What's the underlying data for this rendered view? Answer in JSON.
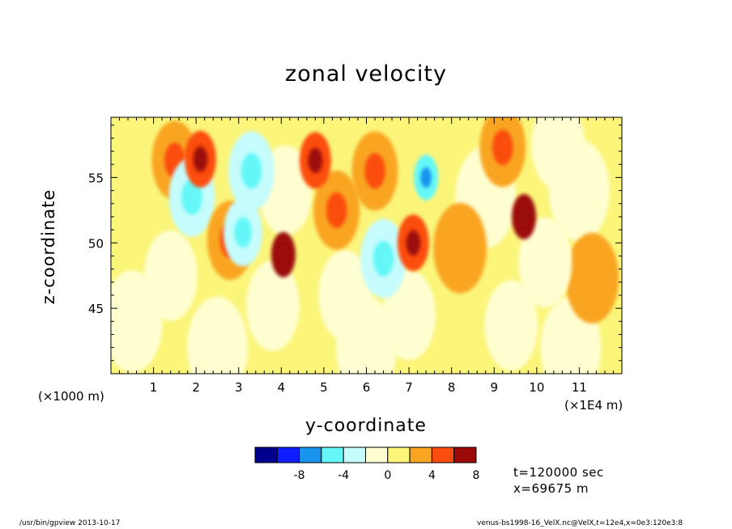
{
  "chart_data": {
    "type": "heatmap",
    "title": "zonal velocity",
    "xlabel": "y-coordinate",
    "ylabel": "z-coordinate",
    "x_unit_note": "(x1E4 m)",
    "y_unit_note": "(x1000 m)",
    "x_ticks": [
      1,
      2,
      3,
      4,
      5,
      6,
      7,
      8,
      9,
      10,
      11
    ],
    "y_ticks": [
      45,
      50,
      55
    ],
    "xlim": [
      0,
      12
    ],
    "ylim": [
      40,
      59.6
    ],
    "colorbar": {
      "levels": [
        -12,
        -10,
        -8,
        -6,
        -4,
        -2,
        0,
        2,
        4,
        6,
        8,
        10
      ],
      "tick_labels": [
        "-8",
        "-4",
        "0",
        "4",
        "8"
      ],
      "tick_values": [
        -8,
        -4,
        0,
        4,
        8
      ],
      "colors": [
        "#00008f",
        "#0d1dff",
        "#1894ee",
        "#65f7f8",
        "#c6fcfd",
        "#fefed0",
        "#fbf57a",
        "#f9a521",
        "#fb4d0f",
        "#9c0909"
      ]
    },
    "features": [
      {
        "x": 0.3,
        "y": 50.0,
        "value": 1
      },
      {
        "x": 1.5,
        "y": 56.3,
        "value": 3
      },
      {
        "x": 2.1,
        "y": 56.4,
        "value": 5
      },
      {
        "x": 1.9,
        "y": 53.5,
        "value": -3
      },
      {
        "x": 2.8,
        "y": 50.2,
        "value": 3
      },
      {
        "x": 3.3,
        "y": 55.5,
        "value": -3
      },
      {
        "x": 3.1,
        "y": 50.8,
        "value": -4
      },
      {
        "x": 4.05,
        "y": 49.1,
        "value": 6
      },
      {
        "x": 4.1,
        "y": 54.0,
        "value": -2
      },
      {
        "x": 4.8,
        "y": 56.3,
        "value": 5
      },
      {
        "x": 5.3,
        "y": 52.5,
        "value": 3
      },
      {
        "x": 6.2,
        "y": 55.5,
        "value": 3
      },
      {
        "x": 6.4,
        "y": 48.8,
        "value": -3
      },
      {
        "x": 7.1,
        "y": 50.0,
        "value": 5
      },
      {
        "x": 7.4,
        "y": 55.0,
        "value": -6
      },
      {
        "x": 8.2,
        "y": 49.6,
        "value": 2
      },
      {
        "x": 9.7,
        "y": 52.0,
        "value": 6
      },
      {
        "x": 10.5,
        "y": 57.5,
        "value": -2
      },
      {
        "x": 9.2,
        "y": 57.3,
        "value": 3
      },
      {
        "x": 11.3,
        "y": 47.3,
        "value": 2
      },
      {
        "x": 3.8,
        "y": 45.2,
        "value": -2
      },
      {
        "x": 5.5,
        "y": 46.0,
        "value": -2
      },
      {
        "x": 7.0,
        "y": 44.5,
        "value": -2
      },
      {
        "x": 9.4,
        "y": 43.7,
        "value": -2
      },
      {
        "x": 1.4,
        "y": 47.5,
        "value": -2
      },
      {
        "x": 10.2,
        "y": 48.5,
        "value": -2
      },
      {
        "x": 8.8,
        "y": 53.5,
        "value": -1
      },
      {
        "x": 11.0,
        "y": 54.0,
        "value": -1
      },
      {
        "x": 0.5,
        "y": 44.0,
        "value": -1
      },
      {
        "x": 6.0,
        "y": 42.0,
        "value": -1
      },
      {
        "x": 2.5,
        "y": 42.0,
        "value": -1
      },
      {
        "x": 10.8,
        "y": 42.0,
        "value": -1
      },
      {
        "x": 5.0,
        "y": 58.8,
        "value": 1
      },
      {
        "x": 2.5,
        "y": 58.5,
        "value": 1
      }
    ]
  },
  "labels": {
    "title": "zonal velocity",
    "xlabel": "y-coordinate",
    "ylabel": "z-coordinate",
    "y_unit": "(×1000 m)",
    "x_unit": "(×1E4 m)",
    "time_info": "t=120000 sec",
    "x_info": "x=69675 m",
    "footer_left": "/usr/bin/gpview  2013-10-17",
    "footer_right": "venus-bs1998-16_VelX.nc@VelX,t=12e4,x=0e3:120e3:8"
  }
}
